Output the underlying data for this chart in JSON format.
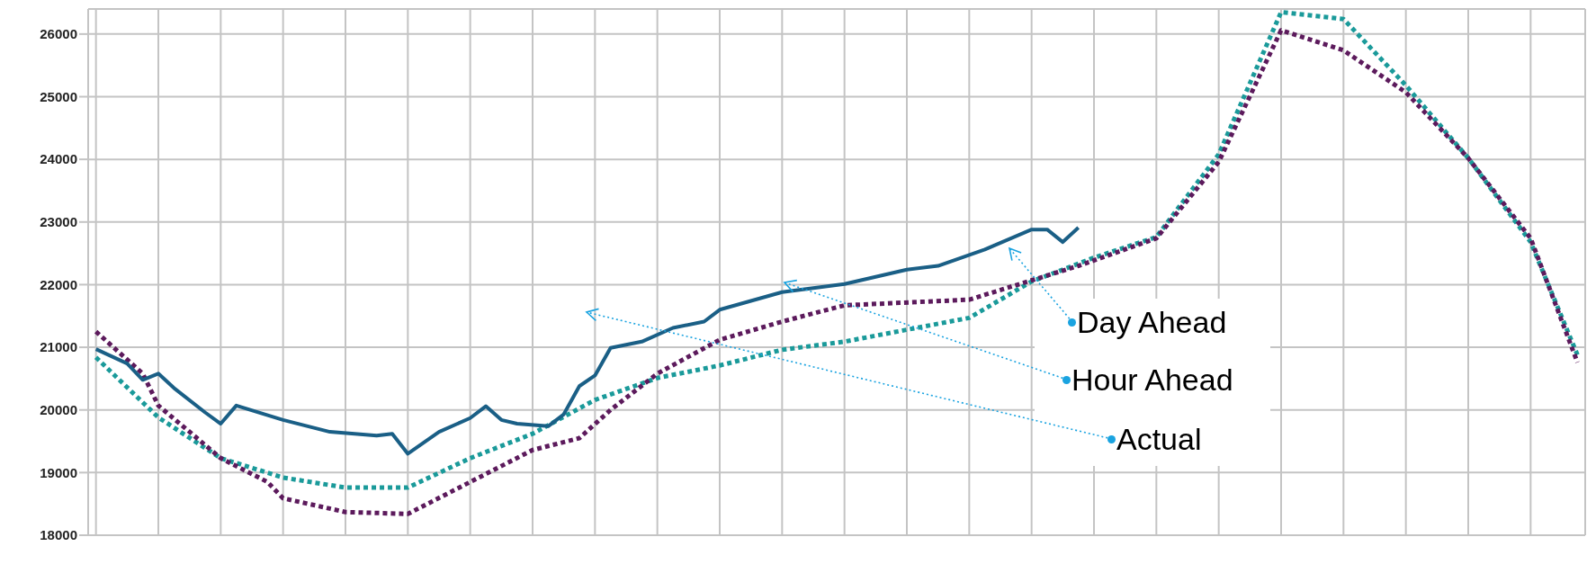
{
  "chart_data": {
    "type": "line",
    "categories": [
      null,
      null,
      null,
      null,
      null,
      null,
      null,
      null,
      null,
      null,
      null,
      null,
      null,
      null,
      null,
      null,
      null,
      null,
      null,
      null,
      null,
      null,
      null,
      null,
      null,
      null,
      null,
      null,
      null,
      null,
      null,
      null,
      null,
      null,
      null,
      null,
      null,
      null,
      null,
      null,
      null,
      null,
      null,
      null,
      null,
      null,
      null,
      null,
      null,
      null,
      null,
      null,
      null,
      null,
      null,
      null,
      null,
      null,
      null,
      null,
      null,
      null,
      null,
      null,
      null,
      null,
      null,
      null,
      null,
      null,
      null,
      null,
      null,
      null,
      null,
      null,
      null,
      null,
      null,
      null,
      null,
      null,
      null,
      null,
      null,
      null,
      null,
      null,
      null,
      null,
      null,
      null,
      null,
      null,
      null,
      null
    ],
    "ylim": [
      18000,
      26400
    ],
    "yticks": [
      18000,
      19000,
      20000,
      21000,
      22000,
      23000,
      24000,
      25000,
      26000
    ],
    "grid": true,
    "tick_labels": "y",
    "marker": "none",
    "series": [
      {
        "name": "Day Ahead",
        "color": "#1a9a9a",
        "line_style": "dotted",
        "values": [
          20840,
          null,
          null,
          null,
          19880,
          null,
          null,
          null,
          19230,
          null,
          null,
          null,
          18920,
          null,
          null,
          null,
          18760,
          null,
          null,
          null,
          18760,
          null,
          null,
          null,
          19230,
          null,
          null,
          null,
          19620,
          null,
          null,
          null,
          20160,
          null,
          null,
          null,
          20510,
          null,
          null,
          null,
          20710,
          null,
          null,
          null,
          20960,
          null,
          null,
          null,
          21090,
          null,
          null,
          null,
          21280,
          null,
          null,
          null,
          21470,
          null,
          null,
          null,
          22050,
          null,
          null,
          null,
          22430,
          null,
          null,
          null,
          22760,
          null,
          null,
          null,
          24080,
          null,
          null,
          null,
          26350,
          null,
          null,
          null,
          26240,
          null,
          null,
          null,
          25180,
          null,
          null,
          null,
          24020,
          null,
          null,
          null,
          22680,
          null,
          null,
          20880
        ]
      },
      {
        "name": "Hour Ahead",
        "color": "#5c1a5c",
        "line_style": "dotted",
        "values": [
          21250,
          null,
          null,
          20580,
          20070,
          null,
          null,
          null,
          19230,
          null,
          null,
          18850,
          18590,
          null,
          null,
          null,
          18370,
          null,
          null,
          null,
          18340,
          null,
          null,
          null,
          18850,
          null,
          null,
          null,
          19360,
          null,
          null,
          19550,
          null,
          20000,
          null,
          null,
          20580,
          null,
          null,
          null,
          21120,
          null,
          null,
          null,
          21410,
          null,
          null,
          null,
          21670,
          null,
          null,
          null,
          null,
          null,
          null,
          null,
          21760,
          null,
          null,
          null,
          null,
          null,
          null,
          22300,
          null,
          null,
          null,
          null,
          22740,
          null,
          null,
          null,
          23960,
          null,
          null,
          null,
          26060,
          null,
          null,
          null,
          25740,
          null,
          null,
          null,
          25070,
          null,
          null,
          null,
          24020,
          null,
          null,
          null,
          22740,
          null,
          null,
          20760
        ]
      },
      {
        "name": "Actual",
        "color": "#1a5f86",
        "line_style": "solid",
        "values": [
          20970,
          null,
          20740,
          20480,
          20580,
          20350,
          null,
          19960,
          19780,
          20070,
          null,
          null,
          19840,
          null,
          null,
          19650,
          null,
          null,
          19590,
          19620,
          19300,
          null,
          19650,
          null,
          19870,
          20060,
          19840,
          19780,
          null,
          19740,
          19930,
          20380,
          20550,
          20990,
          null,
          21090,
          null,
          21310,
          null,
          21410,
          21600,
          null,
          null,
          null,
          21880,
          null,
          null,
          null,
          22010,
          null,
          null,
          null,
          22240,
          null,
          22300,
          null,
          null,
          22560,
          null,
          null,
          22880,
          22880,
          22680,
          22910,
          null,
          null,
          null,
          null,
          null,
          null,
          null,
          null,
          null,
          null,
          null,
          null,
          null,
          null,
          null,
          null,
          null,
          null,
          null,
          null,
          null,
          null,
          null,
          null,
          null,
          null,
          null,
          null,
          null,
          null,
          null,
          null
        ]
      }
    ]
  }
}
